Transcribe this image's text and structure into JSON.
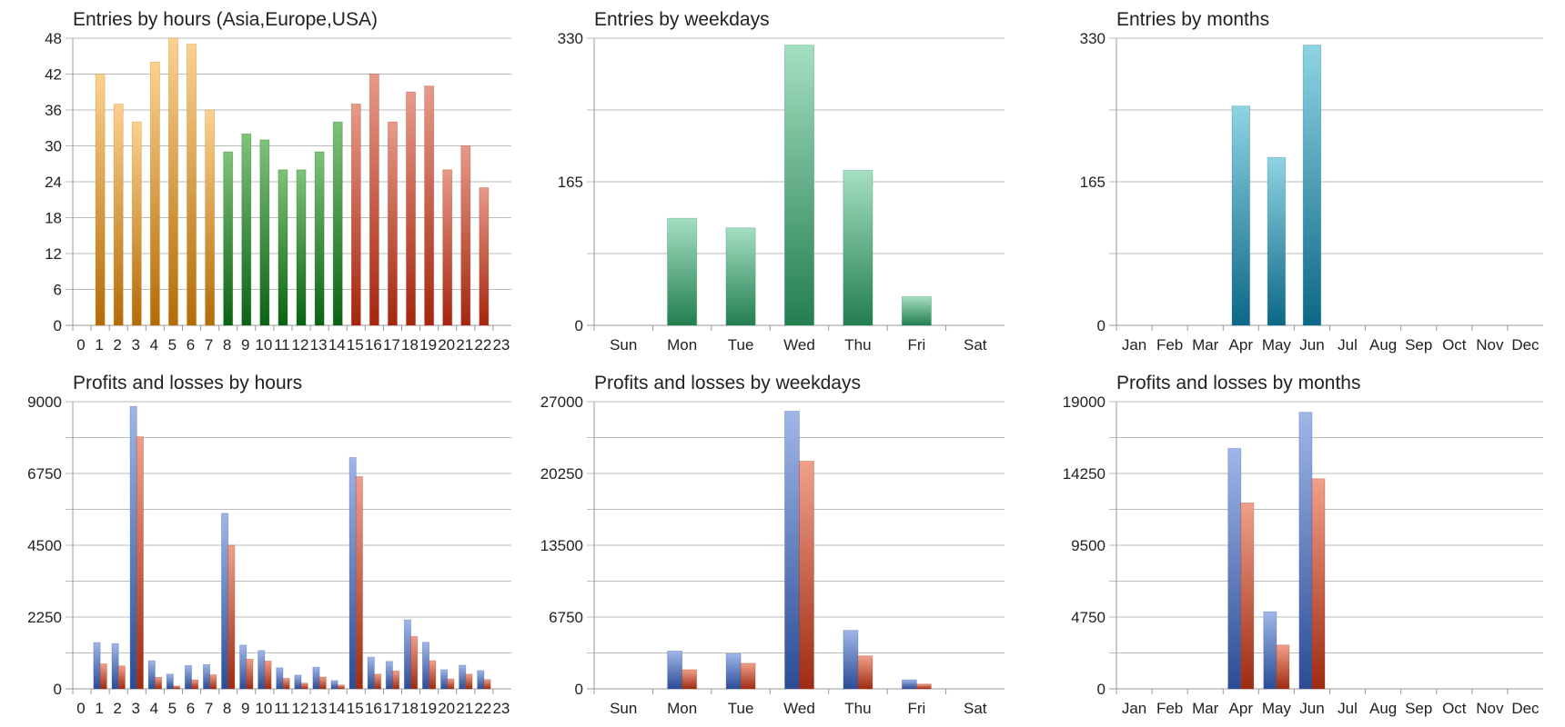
{
  "colors": {
    "amber": [
      "#fcd18e",
      "#b46c05"
    ],
    "green": [
      "#7fc27a",
      "#0b6212"
    ],
    "red": [
      "#e79a88",
      "#a4260d"
    ],
    "teal_green": [
      "#a4dfc1",
      "#237e50"
    ],
    "blue_cyan": [
      "#8fd4e3",
      "#0c6786"
    ],
    "profit_blue": [
      "#9fb6e8",
      "#2b4c95"
    ],
    "loss_red": [
      "#f0a08a",
      "#9e2b12"
    ],
    "grid": "#bbbbbb",
    "axis": "#999999"
  },
  "chart_data": [
    {
      "id": "hours_entries",
      "type": "bar",
      "title": "Entries by hours (Asia,Europe,USA)",
      "categories": [
        "0",
        "1",
        "2",
        "3",
        "4",
        "5",
        "6",
        "7",
        "8",
        "9",
        "10",
        "11",
        "12",
        "13",
        "14",
        "15",
        "16",
        "17",
        "18",
        "19",
        "20",
        "21",
        "22",
        "23"
      ],
      "series": [
        {
          "values": [
            0,
            42,
            37,
            34,
            44,
            48,
            47,
            36,
            29,
            32,
            31,
            26,
            26,
            29,
            34,
            37,
            42,
            34,
            39,
            40,
            26,
            30,
            23,
            0
          ]
        }
      ],
      "bar_color_groups": [
        {
          "from": 0,
          "to": 7,
          "color": "amber"
        },
        {
          "from": 8,
          "to": 14,
          "color": "green"
        },
        {
          "from": 15,
          "to": 23,
          "color": "red"
        }
      ],
      "yticks": [
        0,
        6,
        12,
        18,
        24,
        30,
        36,
        42,
        48
      ],
      "ylim": [
        0,
        48
      ],
      "grid": true
    },
    {
      "id": "weekday_entries",
      "type": "bar",
      "title": "Entries by weekdays",
      "categories": [
        "Sun",
        "Mon",
        "Tue",
        "Wed",
        "Thu",
        "Fri",
        "Sat"
      ],
      "series": [
        {
          "values": [
            0,
            123,
            112,
            322,
            178,
            33,
            0
          ],
          "color": "teal_green"
        }
      ],
      "yticks": [
        0,
        165,
        330
      ],
      "ylim": [
        0,
        330
      ],
      "grid": true
    },
    {
      "id": "month_entries",
      "type": "bar",
      "title": "Entries by months",
      "categories": [
        "Jan",
        "Feb",
        "Mar",
        "Apr",
        "May",
        "Jun",
        "Jul",
        "Aug",
        "Sep",
        "Oct",
        "Nov",
        "Dec"
      ],
      "series": [
        {
          "values": [
            0,
            0,
            0,
            252,
            193,
            322,
            0,
            0,
            0,
            0,
            0,
            0
          ],
          "color": "blue_cyan"
        }
      ],
      "yticks": [
        0,
        165,
        330
      ],
      "ylim": [
        0,
        330
      ],
      "grid": true
    },
    {
      "id": "hours_pnl",
      "type": "bar",
      "title": "Profits and losses by hours",
      "categories": [
        "0",
        "1",
        "2",
        "3",
        "4",
        "5",
        "6",
        "7",
        "8",
        "9",
        "10",
        "11",
        "12",
        "13",
        "14",
        "15",
        "16",
        "17",
        "18",
        "19",
        "20",
        "21",
        "22",
        "23"
      ],
      "series": [
        {
          "values": [
            0,
            1450,
            1420,
            8850,
            880,
            460,
            730,
            760,
            5500,
            1370,
            1200,
            660,
            430,
            680,
            260,
            7250,
            990,
            860,
            2160,
            1460,
            600,
            740,
            570,
            0
          ],
          "color": "profit_blue"
        },
        {
          "values": [
            0,
            780,
            720,
            7900,
            360,
            90,
            280,
            440,
            4500,
            930,
            870,
            330,
            180,
            370,
            120,
            6650,
            460,
            560,
            1640,
            880,
            310,
            460,
            290,
            0
          ],
          "color": "loss_red"
        }
      ],
      "yticks": [
        0,
        2250,
        4500,
        6750,
        9000
      ],
      "ylim": [
        0,
        9000
      ],
      "grid": true
    },
    {
      "id": "weekday_pnl",
      "type": "bar",
      "title": "Profits and losses by weekdays",
      "categories": [
        "Sun",
        "Mon",
        "Tue",
        "Wed",
        "Thu",
        "Fri",
        "Sat"
      ],
      "series": [
        {
          "values": [
            0,
            3550,
            3300,
            26100,
            5500,
            850,
            0
          ],
          "color": "profit_blue"
        },
        {
          "values": [
            0,
            1800,
            2400,
            21400,
            3100,
            450,
            0
          ],
          "color": "loss_red"
        }
      ],
      "yticks": [
        0,
        6750,
        13500,
        20250,
        27000
      ],
      "ylim": [
        0,
        27000
      ],
      "grid": true
    },
    {
      "id": "month_pnl",
      "type": "bar",
      "title": "Profits and losses by months",
      "categories": [
        "Jan",
        "Feb",
        "Mar",
        "Apr",
        "May",
        "Jun",
        "Jul",
        "Aug",
        "Sep",
        "Oct",
        "Nov",
        "Dec"
      ],
      "series": [
        {
          "values": [
            0,
            0,
            0,
            15900,
            5100,
            18300,
            0,
            0,
            0,
            0,
            0,
            0
          ],
          "color": "profit_blue"
        },
        {
          "values": [
            0,
            0,
            0,
            12300,
            2900,
            13900,
            0,
            0,
            0,
            0,
            0,
            0
          ],
          "color": "loss_red"
        }
      ],
      "yticks": [
        0,
        4750,
        9500,
        14250,
        19000
      ],
      "ylim": [
        0,
        19000
      ],
      "grid": true
    }
  ]
}
